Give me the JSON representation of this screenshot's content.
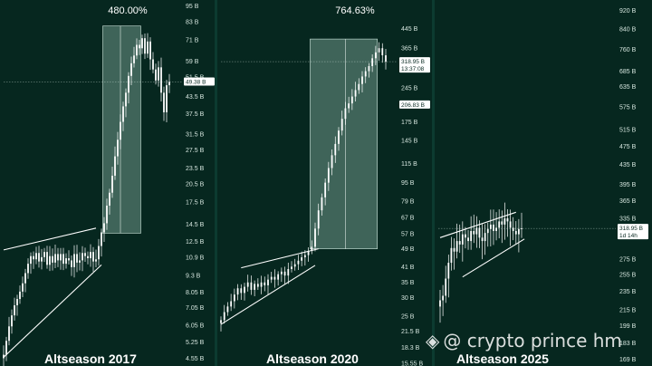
{
  "colors": {
    "background": "#06271f",
    "candle_up": "#ffffff",
    "candle_down": "#ffffff",
    "highlight_box": "#9fc9b9",
    "trendline": "#ffffff",
    "tag_bg": "#ffffff"
  },
  "watermark": {
    "icon": "binance-diamond-icon",
    "text": "@ crypto prince hm"
  },
  "chart_data": [
    {
      "type": "candlestick",
      "title": "Altseason 2017",
      "percent_label": "480.00%",
      "y_scale": "log",
      "ylim": [
        4.4,
        97
      ],
      "y_ticks": [
        "95 B",
        "83 B",
        "71 B",
        "59 B",
        "51.5 B",
        "43.5 B",
        "37.5 B",
        "31.5 B",
        "27.5 B",
        "23.5 B",
        "20.5 B",
        "17.5 B",
        "14.5 B",
        "12.5 B",
        "10.9 B",
        "9.3 B",
        "8.05 B",
        "7.05 B",
        "6.05 B",
        "5.25 B",
        "4.55 B"
      ],
      "y_tick_values": [
        95,
        83,
        71,
        59,
        51.5,
        43.5,
        37.5,
        31.5,
        27.5,
        23.5,
        20.5,
        17.5,
        14.5,
        12.5,
        10.9,
        9.3,
        8.05,
        7.05,
        6.05,
        5.25,
        4.55
      ],
      "price_tag": {
        "label": "49.38 B",
        "value": 49.38
      },
      "closes": [
        4.7,
        5.3,
        6.0,
        6.6,
        7.2,
        7.6,
        8.1,
        8.7,
        9.5,
        10.3,
        11.0,
        10.7,
        11.3,
        10.5,
        10.9,
        11.4,
        10.2,
        11.0,
        10.4,
        11.2,
        10.6,
        11.2,
        10.3,
        10.8,
        10.6,
        10.0,
        11.2,
        10.4,
        10.6,
        11.3,
        11.0,
        10.8,
        11.4,
        10.5,
        10.7,
        12.0,
        13.5,
        14.6,
        17.0,
        19.0,
        22.0,
        26.0,
        30.0,
        35.0,
        40.0,
        45.0,
        52.0,
        58.0,
        62.0,
        68.0,
        66.0,
        72.0,
        63.0,
        70.0,
        60.0,
        55.0,
        50.0,
        56.0,
        45.0,
        38.0,
        48.0,
        49.38
      ],
      "highlight": {
        "from_index": 37,
        "to_index": 50,
        "low": 13.4,
        "high": 80,
        "midline_index": 43
      },
      "triangle": {
        "upper": [
          [
            0,
            11.6
          ],
          [
            34,
            14.0
          ]
        ],
        "lower": [
          [
            0,
            4.6
          ],
          [
            36,
            10.2
          ]
        ]
      }
    },
    {
      "type": "candlestick",
      "title": "Altseason 2020",
      "percent_label": "764.63%",
      "y_scale": "log",
      "ylim": [
        15.3,
        540
      ],
      "y_ticks": [
        "445 B",
        "365 B",
        "318.95 B",
        "245 B",
        "206.83 B",
        "175 B",
        "145 B",
        "115 B",
        "95 B",
        "79 B",
        "67 B",
        "57 B",
        "49 B",
        "41 B",
        "35 B",
        "30 B",
        "25 B",
        "21.5 B",
        "18.3 B",
        "15.55 B"
      ],
      "y_tick_values": [
        445,
        365,
        318.95,
        245,
        206.83,
        175,
        145,
        115,
        95,
        79,
        67,
        57,
        49,
        41,
        35,
        30,
        25,
        21.5,
        18.3,
        15.55
      ],
      "price_tag": {
        "label": "318.95 B",
        "sublabel": "13:37:08",
        "value": 318.95
      },
      "low_tag": {
        "label": "206.83 B",
        "value": 206.83
      },
      "closes": [
        24.0,
        26.0,
        27.5,
        29.0,
        31.0,
        33.0,
        31.5,
        33.5,
        35.0,
        32.5,
        34.5,
        33.5,
        35.0,
        34.0,
        36.0,
        37.0,
        36.0,
        38.0,
        39.0,
        37.5,
        40.0,
        41.0,
        42.0,
        43.5,
        45.0,
        46.0,
        48.0,
        50.0,
        60.0,
        72.0,
        82.0,
        95.0,
        110.0,
        125.0,
        140.0,
        160.0,
        180.0,
        200.0,
        210.0,
        225.0,
        240.0,
        255.0,
        275.0,
        290.0,
        305.0,
        330.0,
        350.0,
        365.0,
        340.0,
        318.95
      ],
      "highlight": {
        "from_index": 27,
        "to_index": 46,
        "low": 49,
        "high": 400,
        "midline_index": 37
      },
      "triangle": {
        "upper": [
          [
            6,
            40.5
          ],
          [
            29,
            49.0
          ]
        ],
        "lower": [
          [
            0,
            23.0
          ],
          [
            28,
            41.5
          ]
        ]
      }
    },
    {
      "type": "candlestick",
      "title": "Altseason 2025",
      "y_scale": "log",
      "ylim": [
        165,
        950
      ],
      "y_ticks": [
        "920 B",
        "840 B",
        "760 B",
        "685 B",
        "635 B",
        "575 B",
        "515 B",
        "475 B",
        "435 B",
        "395 B",
        "365 B",
        "335 B",
        "318.95 B",
        "275 B",
        "255 B",
        "235 B",
        "215 B",
        "199 B",
        "183 B",
        "169 B"
      ],
      "y_tick_values": [
        920,
        840,
        760,
        685,
        635,
        575,
        515,
        475,
        435,
        395,
        365,
        335,
        318.95,
        275,
        255,
        235,
        215,
        199,
        183,
        169
      ],
      "price_tag": {
        "label": "318.95 B",
        "sublabel": "1d 14h",
        "value": 318.95
      },
      "closes": [
        225,
        230,
        250,
        270,
        290,
        285,
        300,
        295,
        310,
        305,
        300,
        315,
        310,
        320,
        305,
        300,
        312,
        318,
        325,
        315,
        320,
        330,
        325,
        335,
        330,
        320,
        315,
        310,
        318,
        318.95
      ],
      "triangle": {
        "upper": [
          [
            0,
            305
          ],
          [
            27,
            345
          ]
        ],
        "lower": [
          [
            8,
            252
          ],
          [
            30,
            303
          ]
        ]
      }
    }
  ]
}
